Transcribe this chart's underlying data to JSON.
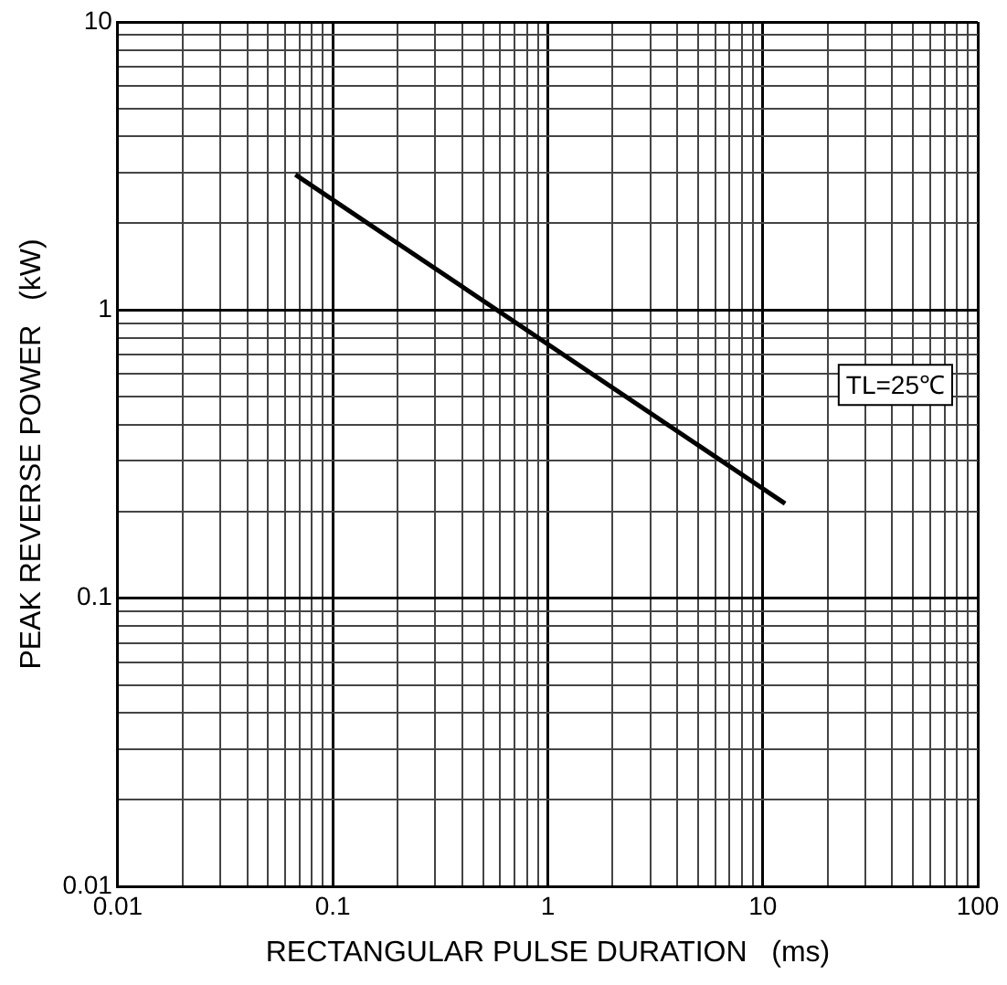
{
  "chart_data": {
    "type": "line",
    "xlabel": "RECTANGULAR PULSE DURATION   (ms)",
    "ylabel": "PEAK REVERSE POWER   (kW)",
    "log": "xy",
    "grid": true,
    "legend": false,
    "marker": "none",
    "line_style": "solid",
    "xlim": [
      0.01,
      100
    ],
    "ylim": [
      0.01,
      10
    ],
    "xticks": [
      0.01,
      {
        "value": 0.02,
        "label": null
      },
      {
        "value": 0.03,
        "label": null
      },
      {
        "value": 0.04,
        "label": null
      },
      {
        "value": 0.05,
        "label": null
      },
      {
        "value": 0.06,
        "label": null
      },
      {
        "value": 0.07,
        "label": null
      },
      {
        "value": 0.08,
        "label": null
      },
      {
        "value": 0.09,
        "label": null
      },
      0.1,
      {
        "value": 0.2,
        "label": null
      },
      {
        "value": 0.3,
        "label": null
      },
      {
        "value": 0.4,
        "label": null
      },
      {
        "value": 0.5,
        "label": null
      },
      {
        "value": 0.6,
        "label": null
      },
      {
        "value": 0.7,
        "label": null
      },
      {
        "value": 0.8,
        "label": null
      },
      {
        "value": 0.9,
        "label": null
      },
      1,
      {
        "value": 2,
        "label": null
      },
      {
        "value": 3,
        "label": null
      },
      {
        "value": 4,
        "label": null
      },
      {
        "value": 5,
        "label": null
      },
      {
        "value": 6,
        "label": null
      },
      {
        "value": 7,
        "label": null
      },
      {
        "value": 8,
        "label": null
      },
      {
        "value": 9,
        "label": null
      },
      10,
      {
        "value": 20,
        "label": null
      },
      {
        "value": 30,
        "label": null
      },
      {
        "value": 40,
        "label": null
      },
      {
        "value": 50,
        "label": null
      },
      {
        "value": 60,
        "label": null
      },
      {
        "value": 70,
        "label": null
      },
      {
        "value": 80,
        "label": null
      },
      {
        "value": 90,
        "label": null
      },
      100
    ],
    "yticks": [
      0.01,
      {
        "value": 0.02,
        "label": null
      },
      {
        "value": 0.03,
        "label": null
      },
      {
        "value": 0.04,
        "label": null
      },
      {
        "value": 0.05,
        "label": null
      },
      {
        "value": 0.06,
        "label": null
      },
      {
        "value": 0.07,
        "label": null
      },
      {
        "value": 0.08,
        "label": null
      },
      {
        "value": 0.09,
        "label": null
      },
      0.1,
      {
        "value": 0.2,
        "label": null
      },
      {
        "value": 0.3,
        "label": null
      },
      {
        "value": 0.4,
        "label": null
      },
      {
        "value": 0.5,
        "label": null
      },
      {
        "value": 0.6,
        "label": null
      },
      {
        "value": 0.7,
        "label": null
      },
      {
        "value": 0.8,
        "label": null
      },
      {
        "value": 0.9,
        "label": null
      },
      1,
      {
        "value": 2,
        "label": null
      },
      {
        "value": 3,
        "label": null
      },
      {
        "value": 4,
        "label": null
      },
      {
        "value": 5,
        "label": null
      },
      {
        "value": 6,
        "label": null
      },
      {
        "value": 7,
        "label": null
      },
      {
        "value": 8,
        "label": null
      },
      {
        "value": 9,
        "label": null
      },
      10
    ],
    "series": [
      {
        "color": "#000000",
        "x": [
          0.067,
          12.7
        ],
        "values": [
          2.95,
          0.213
        ]
      }
    ],
    "annotations": [
      "TL=25℃"
    ]
  }
}
